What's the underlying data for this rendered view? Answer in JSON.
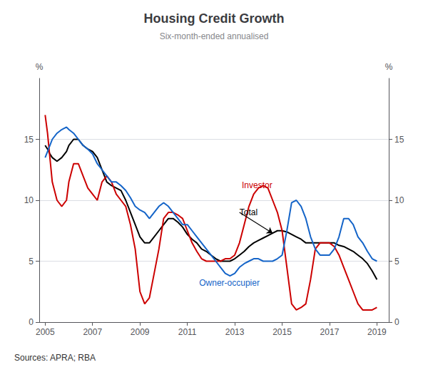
{
  "chart_data": {
    "type": "line",
    "title": "Housing Credit Growth",
    "subtitle": "Six-month-ended annualised",
    "source": "Sources: APRA; RBA",
    "ylabel": "%",
    "y2label": "%",
    "xlim": [
      2004.75,
      2019.5
    ],
    "xticks": [
      2005,
      2007,
      2009,
      2011,
      2013,
      2015,
      2017,
      2019
    ],
    "ylim": [
      0,
      20
    ],
    "yticks": [
      0,
      5,
      10,
      15
    ],
    "y2lim": [
      0,
      20
    ],
    "y2ticks": [
      0,
      5,
      10,
      15
    ],
    "grid": true,
    "x": [
      2005.0,
      2005.1,
      2005.2,
      2005.3,
      2005.5,
      2005.7,
      2005.9,
      2006.0,
      2006.2,
      2006.4,
      2006.6,
      2006.8,
      2007.0,
      2007.2,
      2007.4,
      2007.6,
      2007.8,
      2008.0,
      2008.2,
      2008.4,
      2008.6,
      2008.8,
      2009.0,
      2009.2,
      2009.4,
      2009.6,
      2009.8,
      2010.0,
      2010.2,
      2010.4,
      2010.6,
      2010.8,
      2011.0,
      2011.2,
      2011.4,
      2011.6,
      2011.8,
      2012.0,
      2012.2,
      2012.4,
      2012.6,
      2012.8,
      2013.0,
      2013.2,
      2013.4,
      2013.6,
      2013.8,
      2014.0,
      2014.2,
      2014.4,
      2014.6,
      2014.8,
      2015.0,
      2015.2,
      2015.4,
      2015.6,
      2015.8,
      2016.0,
      2016.2,
      2016.4,
      2016.6,
      2016.8,
      2017.0,
      2017.2,
      2017.4,
      2017.6,
      2017.8,
      2018.0,
      2018.2,
      2018.4,
      2018.6,
      2018.8,
      2019.0
    ],
    "series": [
      {
        "name": "Total",
        "color": "#000000",
        "values": [
          14.5,
          14.2,
          13.8,
          13.5,
          13.2,
          13.5,
          14.0,
          14.5,
          15.0,
          15.0,
          14.5,
          14.2,
          14.0,
          13.5,
          12.5,
          11.5,
          11.2,
          11.0,
          10.8,
          10.0,
          9.0,
          8.0,
          7.0,
          6.5,
          6.5,
          7.0,
          7.5,
          8.0,
          8.5,
          8.5,
          8.2,
          7.8,
          7.2,
          6.8,
          6.5,
          6.0,
          5.8,
          5.5,
          5.2,
          5.0,
          5.0,
          5.0,
          5.2,
          5.5,
          5.8,
          6.2,
          6.5,
          6.7,
          6.9,
          7.1,
          7.3,
          7.5,
          7.5,
          7.4,
          7.2,
          7.0,
          6.8,
          6.5,
          6.5,
          6.5,
          6.5,
          6.5,
          6.5,
          6.5,
          6.3,
          6.2,
          6.0,
          5.8,
          5.5,
          5.2,
          4.8,
          4.2,
          3.5
        ]
      },
      {
        "name": "Investor",
        "color": "#cc0000",
        "values": [
          17.0,
          15.5,
          13.5,
          11.5,
          10.0,
          9.5,
          10.0,
          11.5,
          13.0,
          13.0,
          12.0,
          11.0,
          10.5,
          10.0,
          11.5,
          12.0,
          11.5,
          10.5,
          10.0,
          9.5,
          8.0,
          6.0,
          2.5,
          1.5,
          2.0,
          4.0,
          6.0,
          8.5,
          9.0,
          9.0,
          8.8,
          8.5,
          7.5,
          6.5,
          5.8,
          5.2,
          5.0,
          5.0,
          5.0,
          5.0,
          5.2,
          5.2,
          5.5,
          6.5,
          8.0,
          9.5,
          10.5,
          11.0,
          11.2,
          11.0,
          10.0,
          9.0,
          7.5,
          4.5,
          1.5,
          1.0,
          1.2,
          1.5,
          3.5,
          6.0,
          6.5,
          6.5,
          6.5,
          6.2,
          5.5,
          4.5,
          3.5,
          2.5,
          1.5,
          1.0,
          1.0,
          1.0,
          1.2
        ]
      },
      {
        "name": "Owner-occupier",
        "color": "#1464c8",
        "values": [
          13.5,
          14.0,
          14.5,
          15.0,
          15.5,
          15.8,
          16.0,
          15.8,
          15.5,
          15.0,
          14.5,
          14.2,
          13.8,
          13.0,
          12.5,
          12.0,
          11.5,
          11.5,
          11.2,
          10.8,
          10.2,
          9.5,
          9.2,
          9.0,
          8.5,
          9.0,
          9.5,
          9.8,
          9.5,
          9.0,
          8.5,
          8.0,
          8.0,
          7.5,
          7.0,
          6.5,
          6.0,
          5.5,
          5.0,
          4.5,
          4.0,
          3.8,
          4.0,
          4.5,
          4.8,
          5.0,
          5.2,
          5.2,
          5.0,
          5.0,
          5.0,
          5.2,
          5.5,
          7.5,
          9.8,
          10.0,
          9.5,
          8.5,
          7.0,
          6.0,
          5.5,
          5.5,
          5.5,
          6.0,
          7.0,
          8.5,
          8.5,
          8.0,
          7.0,
          6.5,
          5.8,
          5.2,
          5.0
        ]
      }
    ],
    "annotations": [
      {
        "text": "Investor",
        "x": 2013.3,
        "y": 11.2,
        "color": "#cc0000"
      },
      {
        "text": "Total",
        "x": 2013.2,
        "y": 9.0,
        "color": "#000000",
        "arrow_to": [
          2014.6,
          7.3
        ]
      },
      {
        "text": "Owner-occupier",
        "x": 2011.5,
        "y": 3.2,
        "color": "#1464c8"
      }
    ]
  }
}
